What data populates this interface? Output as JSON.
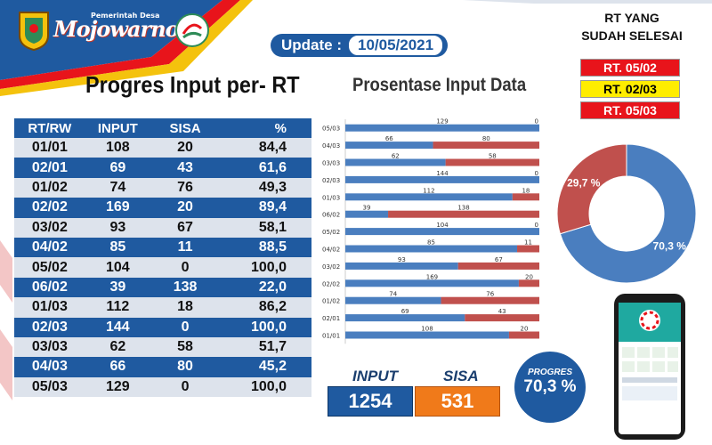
{
  "header": {
    "brand_small": "Pemerintah Desa",
    "brand_name": "Mojowarno",
    "update_label": "Update :",
    "update_date": "10/05/2021"
  },
  "table": {
    "title": "Progres Input per- RT",
    "columns": [
      "RT/RW",
      "INPUT",
      "SISA",
      "%"
    ],
    "rows": [
      [
        "01/01",
        "108",
        "20",
        "84,4"
      ],
      [
        "02/01",
        "69",
        "43",
        "61,6"
      ],
      [
        "01/02",
        "74",
        "76",
        "49,3"
      ],
      [
        "02/02",
        "169",
        "20",
        "89,4"
      ],
      [
        "03/02",
        "93",
        "67",
        "58,1"
      ],
      [
        "04/02",
        "85",
        "11",
        "88,5"
      ],
      [
        "05/02",
        "104",
        "0",
        "100,0"
      ],
      [
        "06/02",
        "39",
        "138",
        "22,0"
      ],
      [
        "01/03",
        "112",
        "18",
        "86,2"
      ],
      [
        "02/03",
        "144",
        "0",
        "100,0"
      ],
      [
        "03/03",
        "62",
        "58",
        "51,7"
      ],
      [
        "04/03",
        "66",
        "80",
        "45,2"
      ],
      [
        "05/03",
        "129",
        "0",
        "100,0"
      ]
    ]
  },
  "selesai": {
    "title_line1": "RT YANG",
    "title_line2": "SUDAH SELESAI",
    "items": [
      {
        "label": "RT. 05/02",
        "bg": "#e8141b",
        "fg": "#ffffff"
      },
      {
        "label": "RT. 02/03",
        "bg": "#ffed00",
        "fg": "#000000"
      },
      {
        "label": "RT. 05/03",
        "bg": "#e8141b",
        "fg": "#ffffff"
      }
    ]
  },
  "summary": {
    "input_label": "INPUT",
    "input_value": "1254",
    "sisa_label": "SISA",
    "sisa_value": "531",
    "progres_label": "PROGRES",
    "progres_value": "70,3 %"
  },
  "colors": {
    "input": "#4a7ebf",
    "sisa": "#c0504d",
    "primary": "#1f5aa0",
    "accent": "#f07a1a"
  },
  "chart_data": [
    {
      "type": "bar",
      "stacked": "percent",
      "orientation": "horizontal",
      "title": "Prosentase Input Data",
      "categories": [
        "05/03",
        "04/03",
        "03/03",
        "02/03",
        "01/03",
        "06/02",
        "05/02",
        "04/02",
        "03/02",
        "02/02",
        "01/02",
        "02/01",
        "01/01"
      ],
      "series": [
        {
          "values": [
            129,
            66,
            62,
            144,
            112,
            39,
            104,
            85,
            93,
            169,
            74,
            69,
            108
          ]
        },
        {
          "values": [
            0,
            80,
            58,
            0,
            18,
            138,
            0,
            11,
            67,
            20,
            76,
            43,
            20
          ]
        }
      ],
      "xticks": [
        "0%",
        "20%",
        "40%",
        "60%",
        "80%",
        "100%"
      ],
      "xlim": [
        0,
        100
      ]
    },
    {
      "type": "pie",
      "donut": true,
      "labels": [
        "70,3 %",
        "29,7 %"
      ],
      "values": [
        70.3,
        29.7
      ],
      "slice_colors": [
        "#4a7ebf",
        "#c0504d"
      ]
    }
  ]
}
